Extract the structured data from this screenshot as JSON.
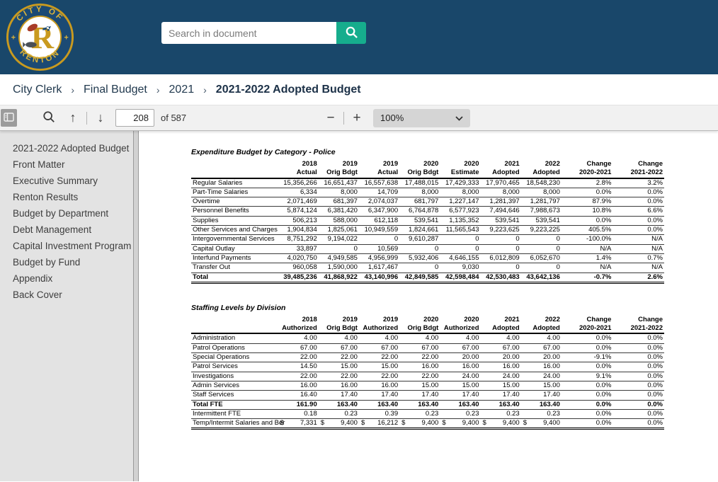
{
  "colors": {
    "header_bg": "#19476a",
    "search_button_green": "#16ad8d",
    "logo_gold": "#c99a1f",
    "logo_navy": "#1b4a74",
    "sidebar_bg": "#e3e3e3",
    "toolbar_bg": "#f1f1f1"
  },
  "header": {
    "logo": {
      "top_text": "CITY OF",
      "bottom_text": "RENTON",
      "letter": "R"
    },
    "search": {
      "placeholder": "Search in document"
    }
  },
  "breadcrumb": {
    "separator": "›",
    "items": [
      "City Clerk",
      "Final Budget",
      "2021",
      "2021-2022 Adopted Budget"
    ]
  },
  "toolbar": {
    "page_input": "208",
    "page_total": "of 587",
    "zoom_level": "100%"
  },
  "sidebar": {
    "items": [
      "2021-2022 Adopted Budget",
      "Front Matter",
      "Executive Summary",
      "Renton Results",
      "Budget by Department",
      "Debt Management",
      "Capital Investment Program",
      "Budget by Fund",
      "Appendix",
      "Back Cover"
    ]
  },
  "document": {
    "tables": [
      {
        "title": "Expenditure Budget by Category - Police",
        "col_headers": [
          [
            "2018",
            "Actual"
          ],
          [
            "2019",
            "Orig Bdgt"
          ],
          [
            "2019",
            "Actual"
          ],
          [
            "2020",
            "Orig Bdgt"
          ],
          [
            "2020",
            "Estimate"
          ],
          [
            "2021",
            "Adopted"
          ],
          [
            "2022",
            "Adopted"
          ],
          [
            "Change",
            "2020-2021"
          ],
          [
            "Change",
            "2021-2022"
          ]
        ],
        "rows": [
          {
            "label": "Regular Salaries",
            "values": [
              "15,356,266",
              "16,651,437",
              "16,557,638",
              "17,488,015",
              "17,429,333",
              "17,970,465",
              "18,548,230",
              "2.8%",
              "3.2%"
            ]
          },
          {
            "label": "Part-Time Salaries",
            "values": [
              "6,334",
              "8,000",
              "14,709",
              "8,000",
              "8,000",
              "8,000",
              "8,000",
              "0.0%",
              "0.0%"
            ]
          },
          {
            "label": "Overtime",
            "values": [
              "2,071,469",
              "681,397",
              "2,074,037",
              "681,797",
              "1,227,147",
              "1,281,397",
              "1,281,797",
              "87.9%",
              "0.0%"
            ]
          },
          {
            "label": "Personnel Benefits",
            "values": [
              "5,874,124",
              "6,381,420",
              "6,347,900",
              "6,764,878",
              "6,577,923",
              "7,494,646",
              "7,988,673",
              "10.8%",
              "6.6%"
            ]
          },
          {
            "label": "Supplies",
            "values": [
              "506,213",
              "588,000",
              "612,118",
              "539,541",
              "1,135,352",
              "539,541",
              "539,541",
              "0.0%",
              "0.0%"
            ]
          },
          {
            "label": "Other Services and Charges",
            "values": [
              "1,904,834",
              "1,825,061",
              "10,949,559",
              "1,824,661",
              "11,565,543",
              "9,223,625",
              "9,223,225",
              "405.5%",
              "0.0%"
            ]
          },
          {
            "label": "Intergovernmental Services",
            "values": [
              "8,751,292",
              "9,194,022",
              "0",
              "9,610,287",
              "0",
              "0",
              "0",
              "-100.0%",
              "N/A"
            ]
          },
          {
            "label": "Capital Outlay",
            "values": [
              "33,897",
              "0",
              "10,569",
              "0",
              "0",
              "0",
              "0",
              "N/A",
              "N/A"
            ]
          },
          {
            "label": "Interfund Payments",
            "values": [
              "4,020,750",
              "4,949,585",
              "4,956,999",
              "5,932,406",
              "4,646,155",
              "6,012,809",
              "6,052,670",
              "1.4%",
              "0.7%"
            ]
          },
          {
            "label": "Transfer Out",
            "values": [
              "960,058",
              "1,590,000",
              "1,617,467",
              "0",
              "9,030",
              "0",
              "0",
              "N/A",
              "N/A"
            ]
          },
          {
            "label": "Total",
            "bold": true,
            "end": true,
            "values": [
              "39,485,236",
              "41,868,922",
              "43,140,996",
              "42,849,585",
              "42,598,484",
              "42,530,483",
              "43,642,136",
              "-0.7%",
              "2.6%"
            ]
          }
        ]
      },
      {
        "title": "Staffing Levels by Division",
        "col_headers": [
          [
            "2018",
            "Authorized"
          ],
          [
            "2019",
            "Orig Bdgt"
          ],
          [
            "2019",
            "Authorized"
          ],
          [
            "2020",
            "Orig Bdgt"
          ],
          [
            "2020",
            "Authorized"
          ],
          [
            "2021",
            "Adopted"
          ],
          [
            "2022",
            "Adopted"
          ],
          [
            "Change",
            "2020-2021"
          ],
          [
            "Change",
            "2021-2022"
          ]
        ],
        "rows": [
          {
            "label": "Administration",
            "values": [
              "4.00",
              "4.00",
              "4.00",
              "4.00",
              "4.00",
              "4.00",
              "4.00",
              "0.0%",
              "0.0%"
            ]
          },
          {
            "label": "Patrol Operations",
            "values": [
              "67.00",
              "67.00",
              "67.00",
              "67.00",
              "67.00",
              "67.00",
              "67.00",
              "0.0%",
              "0.0%"
            ]
          },
          {
            "label": "Special Operations",
            "values": [
              "22.00",
              "22.00",
              "22.00",
              "22.00",
              "20.00",
              "20.00",
              "20.00",
              "-9.1%",
              "0.0%"
            ]
          },
          {
            "label": "Patrol Services",
            "values": [
              "14.50",
              "15.00",
              "15.00",
              "16.00",
              "16.00",
              "16.00",
              "16.00",
              "0.0%",
              "0.0%"
            ]
          },
          {
            "label": "Investigations",
            "values": [
              "22.00",
              "22.00",
              "22.00",
              "22.00",
              "24.00",
              "24.00",
              "24.00",
              "9.1%",
              "0.0%"
            ]
          },
          {
            "label": "Admin Services",
            "values": [
              "16.00",
              "16.00",
              "16.00",
              "15.00",
              "15.00",
              "15.00",
              "15.00",
              "0.0%",
              "0.0%"
            ]
          },
          {
            "label": "Staff Services",
            "values": [
              "16.40",
              "17.40",
              "17.40",
              "17.40",
              "17.40",
              "17.40",
              "17.40",
              "0.0%",
              "0.0%"
            ]
          },
          {
            "label": "Total FTE",
            "bold": true,
            "values": [
              "161.90",
              "163.40",
              "163.40",
              "163.40",
              "163.40",
              "163.40",
              "163.40",
              "0.0%",
              "0.0%"
            ]
          },
          {
            "label": "Intermittent FTE",
            "values": [
              "0.18",
              "0.23",
              "0.39",
              "0.23",
              "0.23",
              "0.23",
              "0.23",
              "0.0%",
              "0.0%"
            ]
          },
          {
            "label": "Temp/Intermit Salaries and Ber",
            "dollar": true,
            "end": true,
            "values": [
              "7,331",
              "9,400",
              "16,212",
              "9,400",
              "9,400",
              "9,400",
              "9,400",
              "0.0%",
              "0.0%"
            ]
          }
        ]
      }
    ]
  }
}
